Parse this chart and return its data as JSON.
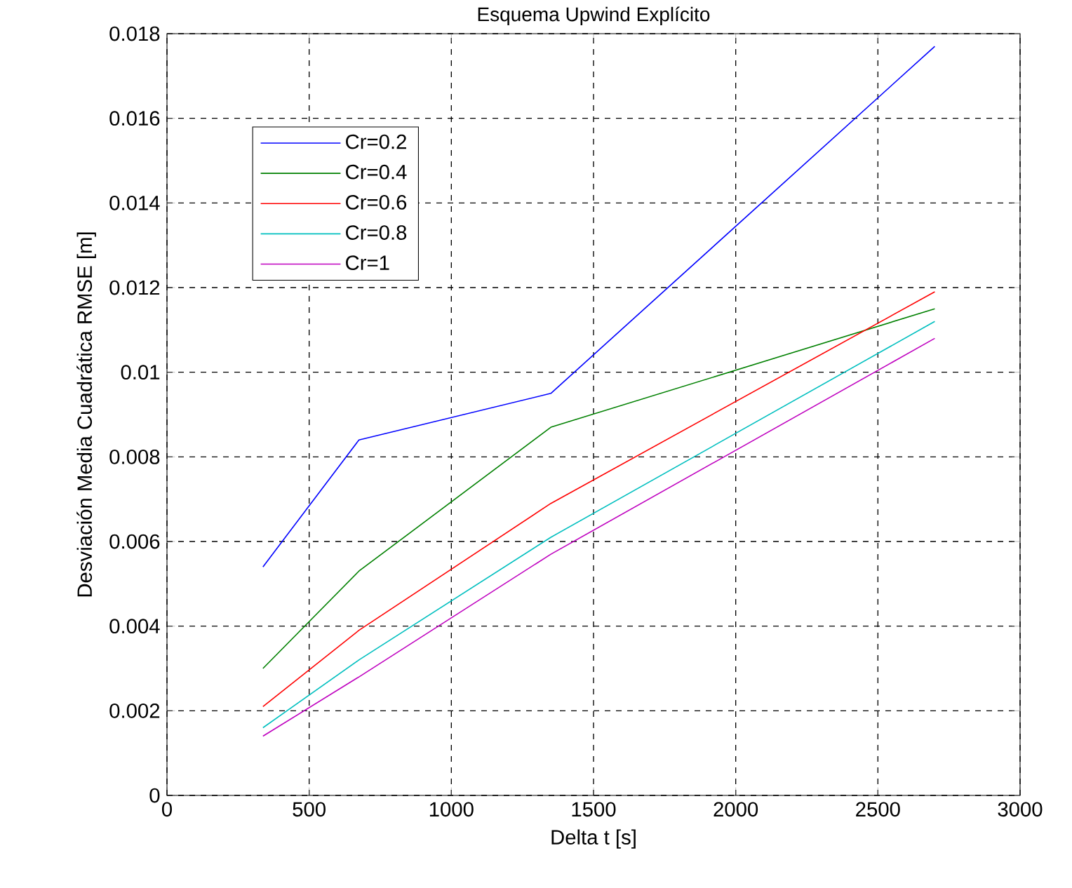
{
  "chart_data": {
    "type": "line",
    "title": "Esquema Upwind Explícito",
    "xlabel": "Delta t [s]",
    "ylabel": "Desviación Media Cuadrática RMSE [m]",
    "x": [
      337.5,
      675,
      1350,
      2700
    ],
    "series": [
      {
        "name": "Cr=0.2",
        "color": "#0000ff",
        "values": [
          0.0054,
          0.0084,
          0.0095,
          0.0177
        ]
      },
      {
        "name": "Cr=0.4",
        "color": "#008000",
        "values": [
          0.003,
          0.0053,
          0.0087,
          0.0115
        ]
      },
      {
        "name": "Cr=0.6",
        "color": "#ff0000",
        "values": [
          0.0021,
          0.0039,
          0.0069,
          0.0119
        ]
      },
      {
        "name": "Cr=0.8",
        "color": "#00bfbf",
        "values": [
          0.0016,
          0.0032,
          0.0061,
          0.0112
        ]
      },
      {
        "name": "Cr=1",
        "color": "#bf00bf",
        "values": [
          0.0014,
          0.0028,
          0.0057,
          0.0108
        ]
      }
    ],
    "xlim": [
      0,
      3000
    ],
    "ylim": [
      0,
      0.018
    ],
    "xticks": [
      0,
      500,
      1000,
      1500,
      2000,
      2500,
      3000
    ],
    "yticks": [
      0,
      0.002,
      0.004,
      0.006,
      0.008,
      0.01,
      0.012,
      0.014,
      0.016,
      0.018
    ],
    "grid": true,
    "legend": "top left"
  }
}
